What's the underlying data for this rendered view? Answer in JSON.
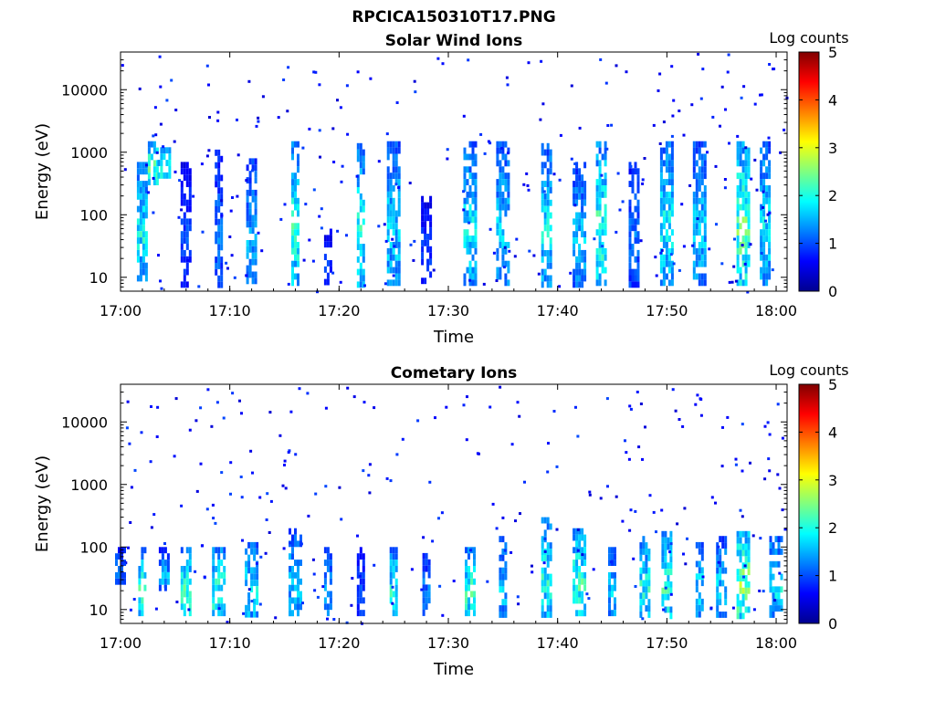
{
  "figure": {
    "title": "RPCICA150310T17.PNG"
  },
  "colorbar": {
    "label": "Log counts",
    "range": [
      0,
      5
    ],
    "ticks": [
      "0",
      "1",
      "2",
      "3",
      "4",
      "5"
    ]
  },
  "chart_data": [
    {
      "type": "heatmap",
      "title": "Solar Wind Ions",
      "xlabel": "Time",
      "ylabel": "Energy (eV)",
      "xlim": [
        "17:00",
        "18:01"
      ],
      "ylim": [
        6,
        40000
      ],
      "yscale": "log",
      "xticks": [
        "17:00",
        "17:10",
        "17:20",
        "17:30",
        "17:40",
        "17:50",
        "18:00"
      ],
      "yticks": [
        "10",
        "100",
        "1000",
        "10000"
      ],
      "grid": false,
      "bursts": [
        {
          "t": "17:02",
          "e": [
            10,
            700
          ],
          "peak": 2.3
        },
        {
          "t": "17:03",
          "e": [
            300,
            1500
          ],
          "peak": 2.8
        },
        {
          "t": "17:04",
          "e": [
            400,
            1200
          ],
          "peak": 2.5
        },
        {
          "t": "17:06",
          "e": [
            8,
            700
          ],
          "peak": 1.2
        },
        {
          "t": "17:09",
          "e": [
            8,
            1100
          ],
          "peak": 1.5
        },
        {
          "t": "17:12",
          "e": [
            8,
            800
          ],
          "peak": 1.8
        },
        {
          "t": "17:16",
          "e": [
            8,
            1500
          ],
          "peak": 2.5
        },
        {
          "t": "17:19",
          "e": [
            8,
            60
          ],
          "peak": 1.1
        },
        {
          "t": "17:22",
          "e": [
            8,
            1400
          ],
          "peak": 2.4
        },
        {
          "t": "17:25",
          "e": [
            8,
            1500
          ],
          "peak": 2.1
        },
        {
          "t": "17:28",
          "e": [
            8,
            200
          ],
          "peak": 1.1
        },
        {
          "t": "17:32",
          "e": [
            8,
            1500
          ],
          "peak": 2.2
        },
        {
          "t": "17:35",
          "e": [
            8,
            1500
          ],
          "peak": 2.0
        },
        {
          "t": "17:39",
          "e": [
            8,
            1400
          ],
          "peak": 2.2
        },
        {
          "t": "17:42",
          "e": [
            8,
            700
          ],
          "peak": 1.9
        },
        {
          "t": "17:44",
          "e": [
            8,
            1500
          ],
          "peak": 2.6
        },
        {
          "t": "17:47",
          "e": [
            8,
            700
          ],
          "peak": 1.5
        },
        {
          "t": "17:50",
          "e": [
            8,
            1500
          ],
          "peak": 2.3
        },
        {
          "t": "17:53",
          "e": [
            8,
            1500
          ],
          "peak": 2.0
        },
        {
          "t": "17:57",
          "e": [
            8,
            1500
          ],
          "peak": 2.8
        },
        {
          "t": "17:59",
          "e": [
            8,
            1500
          ],
          "peak": 2.2
        }
      ]
    },
    {
      "type": "heatmap",
      "title": "Cometary Ions",
      "xlabel": "Time",
      "ylabel": "Energy (eV)",
      "xlim": [
        "17:00",
        "18:01"
      ],
      "ylim": [
        6,
        40000
      ],
      "yscale": "log",
      "xticks": [
        "17:00",
        "17:10",
        "17:20",
        "17:30",
        "17:40",
        "17:50",
        "18:00"
      ],
      "yticks": [
        "10",
        "100",
        "1000",
        "10000"
      ],
      "grid": false,
      "bursts": [
        {
          "t": "17:00",
          "e": [
            30,
            100
          ],
          "peak": 1.6
        },
        {
          "t": "17:02",
          "e": [
            8,
            100
          ],
          "peak": 2.6
        },
        {
          "t": "17:04",
          "e": [
            20,
            100
          ],
          "peak": 1.8
        },
        {
          "t": "17:06",
          "e": [
            8,
            100
          ],
          "peak": 2.6
        },
        {
          "t": "17:09",
          "e": [
            8,
            100
          ],
          "peak": 2.6
        },
        {
          "t": "17:12",
          "e": [
            8,
            120
          ],
          "peak": 2.2
        },
        {
          "t": "17:16",
          "e": [
            8,
            200
          ],
          "peak": 2.0
        },
        {
          "t": "17:19",
          "e": [
            8,
            100
          ],
          "peak": 1.8
        },
        {
          "t": "17:22",
          "e": [
            8,
            100
          ],
          "peak": 1.3
        },
        {
          "t": "17:25",
          "e": [
            8,
            100
          ],
          "peak": 2.4
        },
        {
          "t": "17:28",
          "e": [
            8,
            80
          ],
          "peak": 1.6
        },
        {
          "t": "17:32",
          "e": [
            8,
            100
          ],
          "peak": 2.6
        },
        {
          "t": "17:35",
          "e": [
            8,
            150
          ],
          "peak": 2.0
        },
        {
          "t": "17:39",
          "e": [
            8,
            300
          ],
          "peak": 2.4
        },
        {
          "t": "17:42",
          "e": [
            8,
            200
          ],
          "peak": 2.6
        },
        {
          "t": "17:45",
          "e": [
            8,
            100
          ],
          "peak": 2.0
        },
        {
          "t": "17:48",
          "e": [
            8,
            150
          ],
          "peak": 2.4
        },
        {
          "t": "17:50",
          "e": [
            8,
            180
          ],
          "peak": 2.6
        },
        {
          "t": "17:53",
          "e": [
            8,
            120
          ],
          "peak": 2.2
        },
        {
          "t": "17:55",
          "e": [
            8,
            150
          ],
          "peak": 2.0
        },
        {
          "t": "17:57",
          "e": [
            8,
            180
          ],
          "peak": 3.0
        },
        {
          "t": "18:00",
          "e": [
            8,
            150
          ],
          "peak": 2.2
        }
      ]
    }
  ]
}
